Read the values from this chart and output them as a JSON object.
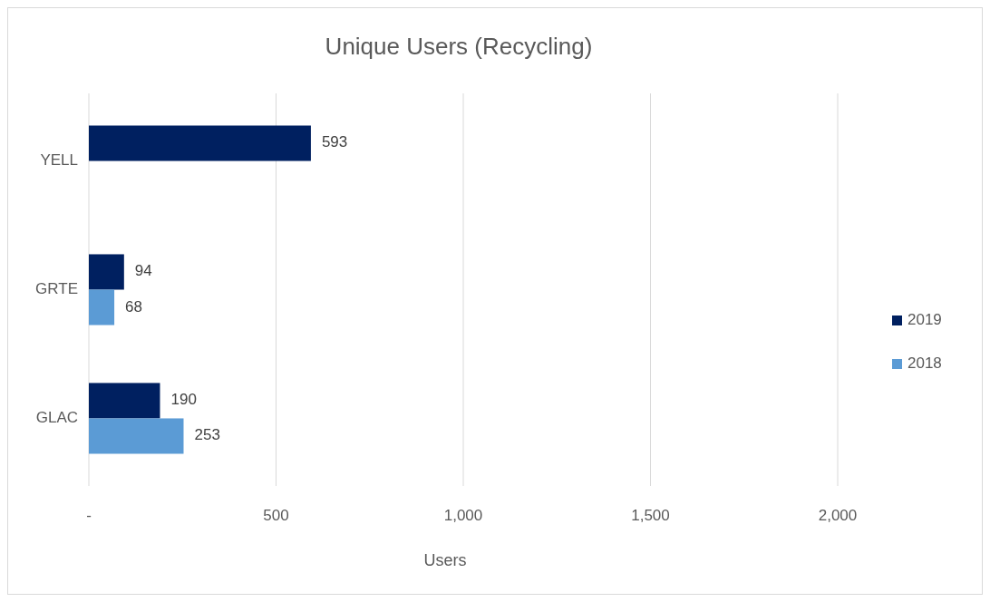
{
  "chart_data": {
    "type": "bar",
    "orientation": "horizontal",
    "title": "Unique Users (Recycling)",
    "xlabel": "Users",
    "categories": [
      "YELL",
      "GRTE",
      "GLAC"
    ],
    "series": [
      {
        "name": "2019",
        "color": "#002060",
        "values": [
          593,
          94,
          190
        ]
      },
      {
        "name": "2018",
        "color": "#5b9bd5",
        "values": [
          null,
          68,
          253
        ]
      }
    ],
    "xlim": [
      0,
      2000
    ],
    "xticks": [
      {
        "value": 0,
        "label": "-"
      },
      {
        "value": 500,
        "label": "500"
      },
      {
        "value": 1000,
        "label": "1,000"
      },
      {
        "value": 1500,
        "label": "1,500"
      },
      {
        "value": 2000,
        "label": "2,000"
      }
    ],
    "grid": "x",
    "legend": "right",
    "data_labels": true
  }
}
